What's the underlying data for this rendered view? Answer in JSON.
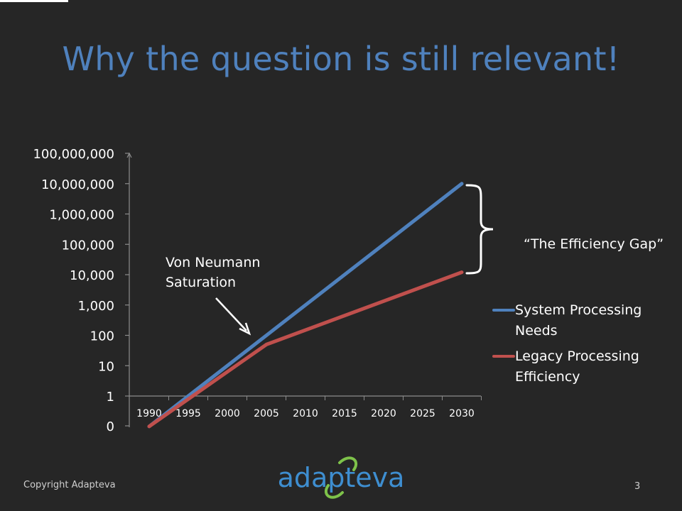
{
  "slide": {
    "title": "Why the question is still relevant!",
    "copyright": "Copyright Adapteva",
    "page_number": "3",
    "logo_text": "adapteva"
  },
  "annotations": {
    "von_neumann": "Von Neumann Saturation",
    "efficiency_gap": "“The Efficiency Gap”"
  },
  "colors": {
    "background": "#262626",
    "title": "#4f81bd",
    "series_blue": "#4f81bd",
    "series_red": "#c0504d",
    "logo": "#3e8ed0"
  },
  "chart_data": {
    "type": "line",
    "y_scale": "log",
    "y_tick_labels": [
      "0",
      "1",
      "10",
      "100",
      "1,000",
      "10,000",
      "100,000",
      "1,000,000",
      "10,000,000",
      "100,000,000"
    ],
    "x_tick_labels": [
      "1990",
      "1995",
      "2000",
      "2005",
      "2010",
      "2015",
      "2020",
      "2025",
      "2030"
    ],
    "series": [
      {
        "name": "System Processing Needs",
        "color": "#4f81bd",
        "x": [
          1990,
          2030
        ],
        "y": [
          0.1,
          10000000
        ]
      },
      {
        "name": "Legacy Processing Efficiency",
        "color": "#c0504d",
        "x": [
          1990,
          2005,
          2030
        ],
        "y": [
          0.1,
          50,
          12000
        ]
      }
    ],
    "legend_position": "right",
    "grid": false
  }
}
